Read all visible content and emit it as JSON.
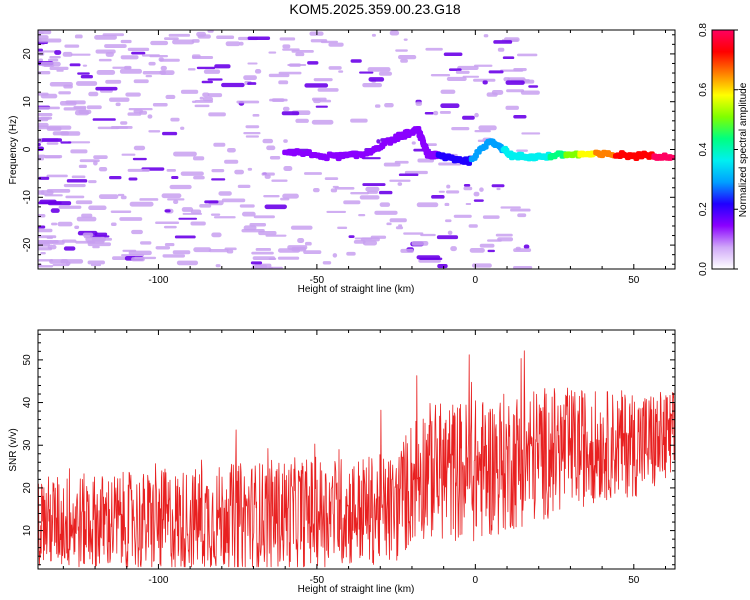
{
  "title": "KOM5.2025.359.00.23.G18",
  "colors": {
    "background": "#ffffff",
    "frame": "#000000",
    "snr_line": "#e82020",
    "spectrum_weak": "#c8a0f0",
    "spectrum_mid": "#6a00e8",
    "spectrum_strong": "#2810c8"
  },
  "chart_data": [
    {
      "type": "heatmap",
      "name": "spectrogram",
      "xlabel": "Height of straight line (km)",
      "ylabel": "Frequency (Hz)",
      "xlim": [
        -138,
        63
      ],
      "ylim": [
        -25,
        25
      ],
      "x_ticks": [
        -100,
        -50,
        0,
        50
      ],
      "x_tick_labels": [
        "-100",
        "-50",
        "0",
        "50"
      ],
      "y_ticks": [
        -20,
        -10,
        0,
        10,
        20
      ],
      "y_tick_labels": [
        "-20",
        "-10",
        "0",
        "10",
        "20"
      ],
      "colorbar": {
        "label": "Normalized spectral amplitude",
        "range": [
          0.0,
          0.8
        ],
        "ticks": [
          0.0,
          0.2,
          0.4,
          0.6,
          0.8
        ],
        "tick_labels": [
          "0.0",
          "0.2",
          "0.4",
          "0.6",
          "0.8"
        ],
        "stops": [
          "#ffffff",
          "#d0a8f8",
          "#8a00ff",
          "#2000ff",
          "#00a0ff",
          "#00f0f0",
          "#00ff80",
          "#80ff00",
          "#ffff00",
          "#ff8000",
          "#ff0000",
          "#ff0060"
        ]
      },
      "dominant_ridge": [
        {
          "x": -60,
          "y": -0.5,
          "amplitude": 0.12
        },
        {
          "x": -45,
          "y": -1.5,
          "amplitude": 0.12
        },
        {
          "x": -35,
          "y": -1.0,
          "amplitude": 0.12
        },
        {
          "x": -25,
          "y": 2.5,
          "amplitude": 0.15
        },
        {
          "x": -18,
          "y": 4.0,
          "amplitude": 0.12
        },
        {
          "x": -15,
          "y": -1.0,
          "amplitude": 0.15
        },
        {
          "x": -10,
          "y": -1.5,
          "amplitude": 0.2
        },
        {
          "x": -2,
          "y": -2.5,
          "amplitude": 0.25
        },
        {
          "x": 5,
          "y": 2.0,
          "amplitude": 0.3
        },
        {
          "x": 12,
          "y": -1.5,
          "amplitude": 0.35
        },
        {
          "x": 20,
          "y": -1.5,
          "amplitude": 0.35
        },
        {
          "x": 30,
          "y": -1.0,
          "amplitude": 0.5
        },
        {
          "x": 40,
          "y": -1.0,
          "amplitude": 0.65
        },
        {
          "x": 50,
          "y": -1.3,
          "amplitude": 0.75
        },
        {
          "x": 63,
          "y": -1.3,
          "amplitude": 0.78
        }
      ]
    },
    {
      "type": "line",
      "name": "snr",
      "xlabel": "Height of straight line (km)",
      "ylabel": "SNR (v/v)",
      "xlim": [
        -138,
        63
      ],
      "ylim": [
        1,
        57
      ],
      "x_ticks": [
        -100,
        -50,
        0,
        50
      ],
      "x_tick_labels": [
        "-100",
        "-50",
        "0",
        "50"
      ],
      "y_ticks": [
        10,
        20,
        30,
        40,
        50
      ],
      "y_tick_labels": [
        "10",
        "20",
        "30",
        "40",
        "50"
      ],
      "envelope": [
        {
          "x": -138,
          "mean": 12,
          "spread": 11
        },
        {
          "x": -100,
          "mean": 12,
          "spread": 12
        },
        {
          "x": -60,
          "mean": 14,
          "spread": 13
        },
        {
          "x": -25,
          "mean": 15,
          "spread": 13
        },
        {
          "x": -18,
          "mean": 24,
          "spread": 16
        },
        {
          "x": 0,
          "mean": 24,
          "spread": 17
        },
        {
          "x": 20,
          "mean": 28,
          "spread": 16
        },
        {
          "x": 40,
          "mean": 30,
          "spread": 13
        },
        {
          "x": 63,
          "mean": 31,
          "spread": 12
        }
      ]
    }
  ]
}
